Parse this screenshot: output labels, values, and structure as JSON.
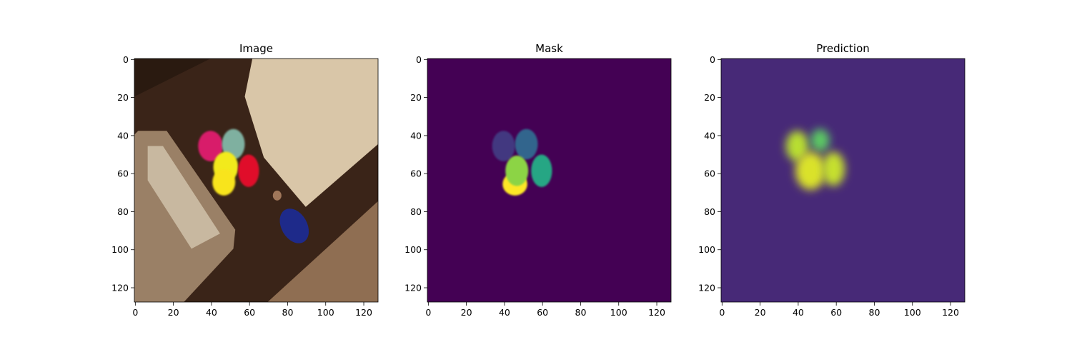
{
  "chart_data": [
    {
      "type": "heatmap",
      "title": "Image",
      "content": "photo",
      "xlim": [
        0,
        128
      ],
      "ylim": [
        128,
        0
      ],
      "xticks": [
        0,
        20,
        40,
        60,
        80,
        100,
        120
      ],
      "yticks": [
        0,
        20,
        40,
        60,
        80,
        100,
        120
      ],
      "objects": [
        {
          "label": "balloon",
          "color": "#d81b6a",
          "cx": 40,
          "cy": 46,
          "rx": 6.5,
          "ry": 8
        },
        {
          "label": "balloon",
          "color": "#7fb0a0",
          "cx": 52,
          "cy": 45,
          "rx": 6,
          "ry": 8
        },
        {
          "label": "balloon",
          "color": "#f2ea1c",
          "cx": 48,
          "cy": 57,
          "rx": 6.5,
          "ry": 8
        },
        {
          "label": "balloon",
          "color": "#e0102a",
          "cx": 60,
          "cy": 59,
          "rx": 5.5,
          "ry": 8.5
        },
        {
          "label": "balloon",
          "color": "#f8e41a",
          "cx": 47,
          "cy": 65,
          "rx": 6,
          "ry": 7
        }
      ]
    },
    {
      "type": "heatmap",
      "title": "Mask",
      "colormap": "viridis",
      "xlim": [
        0,
        128
      ],
      "ylim": [
        128,
        0
      ],
      "xticks": [
        0,
        20,
        40,
        60,
        80,
        100,
        120
      ],
      "yticks": [
        0,
        20,
        40,
        60,
        80,
        100,
        120
      ],
      "background": 0,
      "regions": [
        {
          "value": 0.17,
          "cx": 40,
          "cy": 46,
          "rx": 6,
          "ry": 8
        },
        {
          "value": 0.33,
          "cx": 52,
          "cy": 45,
          "rx": 6,
          "ry": 8
        },
        {
          "value": 1.0,
          "cx": 46,
          "cy": 66,
          "rx": 6.5,
          "ry": 6
        },
        {
          "value": 0.83,
          "cx": 47,
          "cy": 59,
          "rx": 6,
          "ry": 8
        },
        {
          "value": 0.6,
          "cx": 60,
          "cy": 59,
          "rx": 5.5,
          "ry": 8.5
        }
      ]
    },
    {
      "type": "heatmap",
      "title": "Prediction",
      "colormap": "viridis",
      "xlim": [
        0,
        128
      ],
      "ylim": [
        128,
        0
      ],
      "xticks": [
        0,
        20,
        40,
        60,
        80,
        100,
        120
      ],
      "yticks": [
        0,
        20,
        40,
        60,
        80,
        100,
        120
      ],
      "background": 0.12,
      "regions": [
        {
          "value": 0.9,
          "cx": 40,
          "cy": 46,
          "rx": 6,
          "ry": 8
        },
        {
          "value": 0.75,
          "cx": 52,
          "cy": 43,
          "rx": 5,
          "ry": 6
        },
        {
          "value": 0.95,
          "cx": 47,
          "cy": 59,
          "rx": 8,
          "ry": 10
        },
        {
          "value": 0.92,
          "cx": 59,
          "cy": 58,
          "rx": 6,
          "ry": 9
        }
      ]
    }
  ]
}
